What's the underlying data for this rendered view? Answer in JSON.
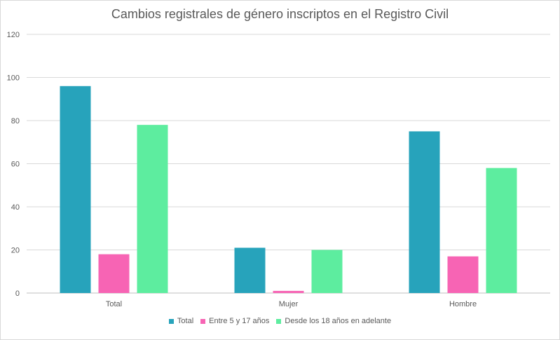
{
  "chart_data": {
    "type": "bar",
    "title": "Cambios registrales de género inscriptos en el Registro Civil",
    "xlabel": "",
    "ylabel": "",
    "categories": [
      "Total",
      "Mujer",
      "Hombre"
    ],
    "series": [
      {
        "name": "Total",
        "color": "#27a3bb",
        "values": [
          96,
          21,
          75
        ]
      },
      {
        "name": "Entre 5 y 17 años",
        "color": "#f764b4",
        "values": [
          18,
          1,
          17
        ]
      },
      {
        "name": "Desde los 18 años en adelante",
        "color": "#5ded9f",
        "values": [
          78,
          20,
          58
        ]
      }
    ],
    "ylim": [
      0,
      120
    ],
    "yticks": [
      "0",
      "20",
      "40",
      "60",
      "80",
      "100",
      "120"
    ],
    "grid": true,
    "legend_position": "bottom"
  }
}
